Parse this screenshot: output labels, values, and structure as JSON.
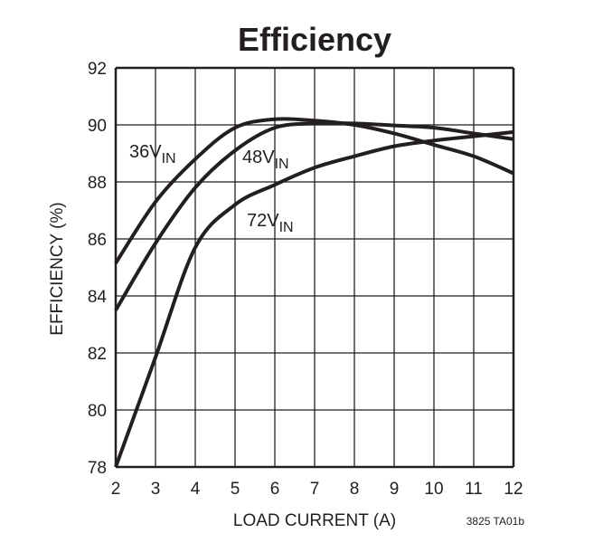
{
  "chart_data": {
    "type": "line",
    "title": "Efficiency",
    "xlabel": "LOAD CURRENT (A)",
    "ylabel": "EFFICIENCY (%)",
    "xlim": [
      2,
      12
    ],
    "ylim": [
      78,
      92
    ],
    "xticks": [
      "2",
      "3",
      "4",
      "5",
      "6",
      "7",
      "8",
      "9",
      "10",
      "11",
      "12"
    ],
    "yticks": [
      "78",
      "80",
      "82",
      "84",
      "86",
      "88",
      "90",
      "92"
    ],
    "grid": true,
    "x": [
      2,
      3,
      4,
      5,
      6,
      7,
      8,
      9,
      10,
      11,
      12
    ],
    "series": [
      {
        "name": "36V",
        "name_sub": "IN",
        "values": [
          85.15,
          87.3,
          88.8,
          89.9,
          90.2,
          90.15,
          90.0,
          89.7,
          89.3,
          88.9,
          88.3
        ]
      },
      {
        "name": "48V",
        "name_sub": "IN",
        "values": [
          83.5,
          85.85,
          87.8,
          89.1,
          89.9,
          90.05,
          90.05,
          89.98,
          89.9,
          89.7,
          89.5
        ]
      },
      {
        "name": "72V",
        "name_sub": "IN",
        "values": [
          78.0,
          81.85,
          85.7,
          87.2,
          87.9,
          88.5,
          88.9,
          89.25,
          89.45,
          89.6,
          89.75
        ]
      }
    ],
    "line_color": "#231f20",
    "footnote": "3825 TA01b"
  }
}
